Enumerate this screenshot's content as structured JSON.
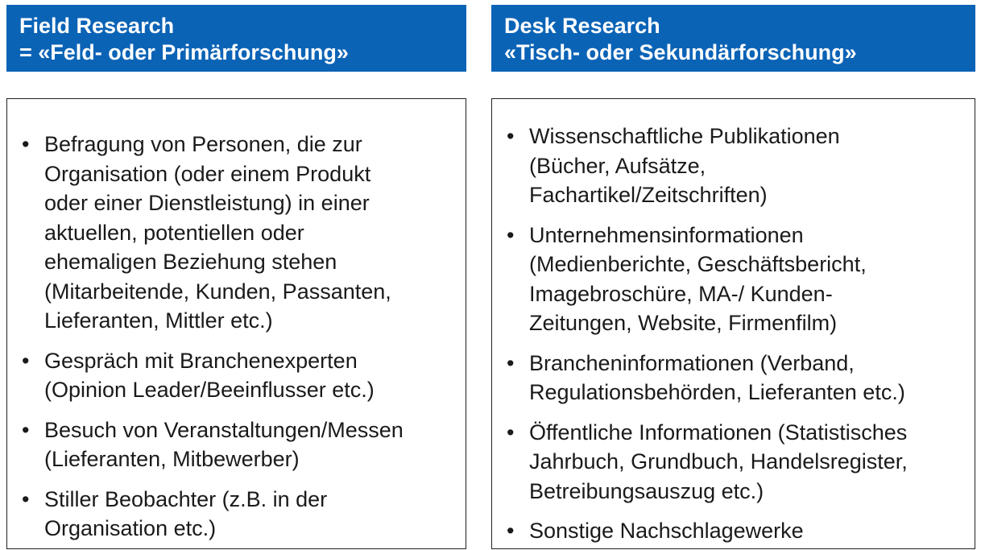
{
  "field": {
    "title_line1": "Field Research",
    "title_line2": "= «Feld- oder Primärforschung»",
    "items": [
      {
        "lines": [
          "Befragung von Personen, die zur",
          "Organisation (oder einem Produkt",
          "oder einer Dienstleistung) in einer",
          "aktuellen, potentiellen oder",
          "ehemaligen Beziehung stehen",
          "(Mitarbeitende, Kunden, Passanten,",
          "Lieferanten, Mittler etc.)"
        ]
      },
      {
        "lines": [
          "Gespräch mit Branchenexperten",
          "(Opinion Leader/Beeinflusser etc.)"
        ]
      },
      {
        "lines": [
          "Besuch von Veranstaltungen/Messen",
          "(Lieferanten, Mitbewerber)"
        ]
      },
      {
        "lines": [
          "Stiller Beobachter (z.B. in der",
          "Organisation etc.)"
        ]
      }
    ]
  },
  "desk": {
    "title_line1": "Desk Research",
    "title_line2": "«Tisch- oder Sekundärforschung»",
    "items": [
      {
        "lines": [
          "Wissenschaftliche Publikationen",
          "(Bücher, Aufsätze,",
          "Fachartikel/Zeitschriften)"
        ]
      },
      {
        "lines": [
          "Unternehmensinformationen",
          "(Medienberichte, Geschäftsbericht,",
          "Imagebroschüre, MA-/ Kunden-",
          "Zeitungen, Website, Firmenfilm)"
        ]
      },
      {
        "lines": [
          "Brancheninformationen (Verband,",
          "Regulationsbehörden, Lieferanten etc.)"
        ]
      },
      {
        "lines": [
          "Öffentliche Informationen (Statistisches",
          "Jahrbuch, Grundbuch, Handelsregister,",
          "Betreibungsauszug etc.)"
        ]
      },
      {
        "lines": [
          "Sonstige Nachschlagewerke"
        ]
      }
    ]
  },
  "bullet_glyph": "•",
  "colors": {
    "header_bg": "#0b63b6",
    "header_text": "#ffffff",
    "border": "#222222",
    "text": "#1a1a1a"
  }
}
